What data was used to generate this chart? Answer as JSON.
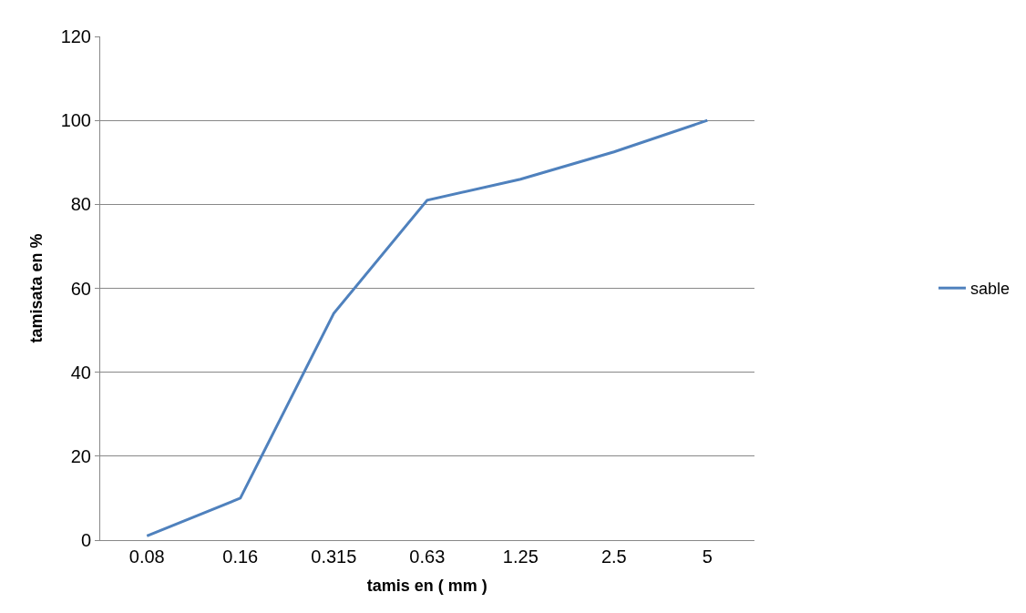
{
  "chart_data": {
    "type": "line",
    "xlabel": "tamis en ( mm )",
    "ylabel": "tamisata en %",
    "categories": [
      "0.08",
      "0.16",
      "0.315",
      "0.63",
      "1.25",
      "2.5",
      "5"
    ],
    "series": [
      {
        "name": "sable",
        "color": "#4f81bd",
        "values": [
          1,
          10,
          54,
          81,
          86,
          92.5,
          100
        ]
      }
    ],
    "ylim": [
      0,
      120
    ],
    "yticks": [
      0,
      20,
      40,
      60,
      80,
      100,
      120
    ],
    "grid": "y",
    "legend": "right",
    "marker": "none",
    "line_style": "solid"
  }
}
